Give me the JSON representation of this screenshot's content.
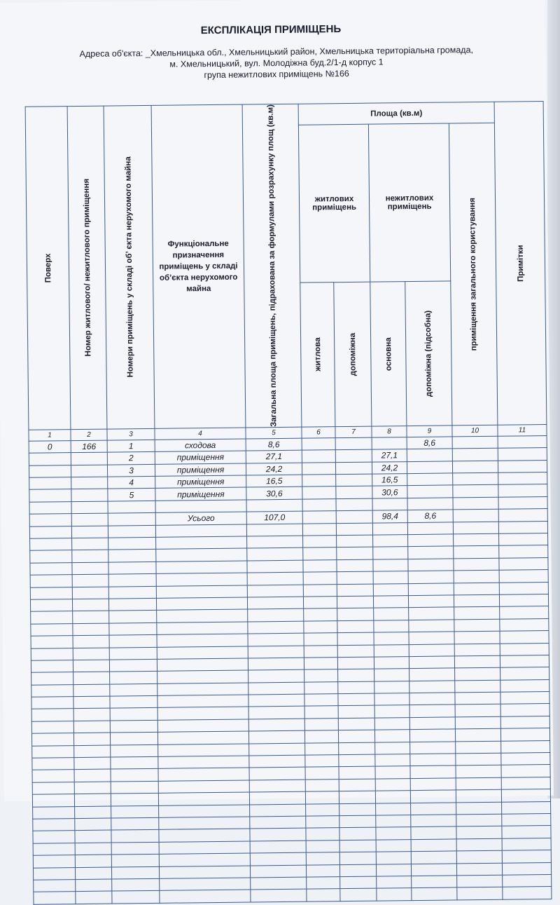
{
  "title": "ЕКСПЛІКАЦІЯ ПРИМІЩЕНЬ",
  "address_line1": "Адреса об'єкта: _Хмельницька обл., Хмельницький район, Хмельницька територіальна громада,",
  "address_line2": "м. Хмельницький, вул. Молодіжна буд.2/1-д корпус 1",
  "address_line3": "група нежитлових приміщень №166",
  "headers": {
    "floor": "Поверх",
    "unit_number": "Номер житлового/ нежитлового приміщення",
    "room_numbers": "Номери приміщень у складі об’ єкта нерухомого майна",
    "purpose": "Функціональне призначення приміщень у складі об’єкта нерухомого майна",
    "total_area": "Загальна площа приміщень, підрахована за формулами розрахунку площ (кв.м)",
    "area_group": "Площа (кв.м)",
    "residential": "житлових приміщень",
    "nonresidential": "нежитлових приміщень",
    "res_main": "житлова",
    "res_aux": "допоміжна",
    "nonres_main": "основна",
    "nonres_aux": "допоміжна (підсобна)",
    "common": "приміщення загального користування",
    "notes": "Примітки"
  },
  "column_numbers": [
    "1",
    "2",
    "3",
    "4",
    "5",
    "6",
    "7",
    "8",
    "9",
    "10",
    "11"
  ],
  "rows": [
    [
      "0",
      "166",
      "1",
      "сходова",
      "8,6",
      "",
      "",
      "",
      "8,6",
      "",
      ""
    ],
    [
      "",
      "",
      "2",
      "приміщення",
      "27,1",
      "",
      "",
      "27,1",
      "",
      "",
      ""
    ],
    [
      "",
      "",
      "3",
      "приміщення",
      "24,2",
      "",
      "",
      "24,2",
      "",
      "",
      ""
    ],
    [
      "",
      "",
      "4",
      "приміщення",
      "16,5",
      "",
      "",
      "16,5",
      "",
      "",
      ""
    ],
    [
      "",
      "",
      "5",
      "приміщення",
      "30,6",
      "",
      "",
      "30,6",
      "",
      "",
      ""
    ],
    [
      "",
      "",
      "",
      "",
      "",
      "",
      "",
      "",
      "",
      "",
      ""
    ],
    [
      "",
      "",
      "",
      "Усього",
      "107,0",
      "",
      "",
      "98,4",
      "8,6",
      "",
      ""
    ]
  ]
}
